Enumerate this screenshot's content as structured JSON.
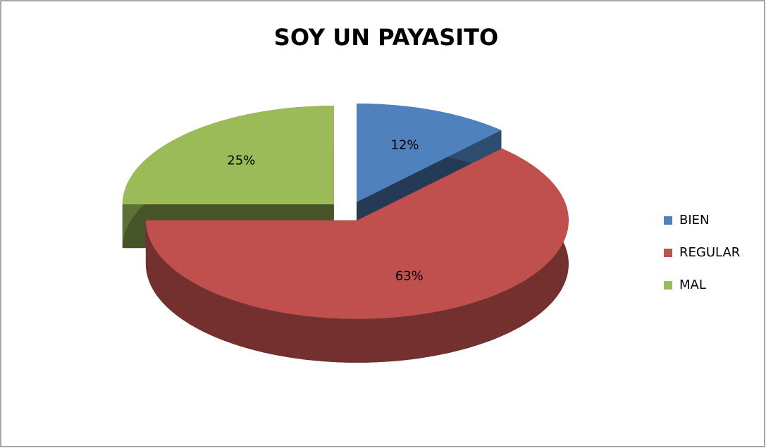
{
  "chart_data": {
    "type": "pie",
    "title": "SOY UN PAYASITO",
    "categories": [
      "BIEN",
      "REGULAR",
      "MAL"
    ],
    "values": [
      12,
      63,
      25
    ],
    "value_labels": [
      "12%",
      "63%",
      "25%"
    ],
    "colors": [
      "#4f81bd",
      "#c0504d",
      "#9bbb59"
    ],
    "legend": "right"
  }
}
